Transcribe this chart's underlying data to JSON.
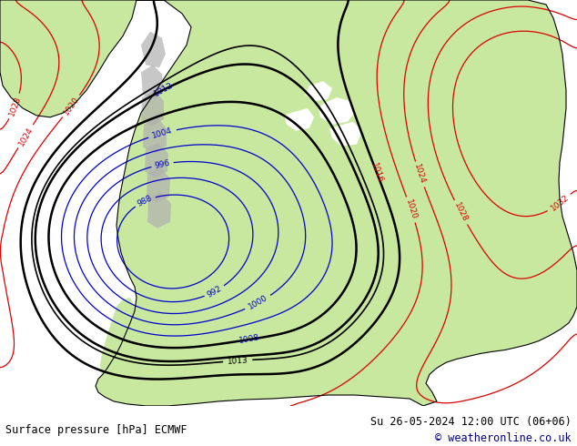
{
  "bottom_left_text": "Surface pressure [hPa] ECMWF",
  "bottom_right_text1": "Su 26-05-2024 12:00 UTC (06+06)",
  "bottom_right_text2": "© weatheronline.co.uk",
  "bg_color": "#ffffff",
  "ocean_color": "#ffffff",
  "land_green": "#c8e8a0",
  "land_grey": "#b0b0b0",
  "font_family": "monospace",
  "text_color": "#000000",
  "copyright_color": "#000080",
  "red_color": "#dd0000",
  "blue_color": "#0000cc",
  "black_color": "#000000",
  "figsize": [
    6.34,
    4.9
  ],
  "dpi": 100,
  "pressure_base": 1013.25,
  "isobar_interval": 4
}
